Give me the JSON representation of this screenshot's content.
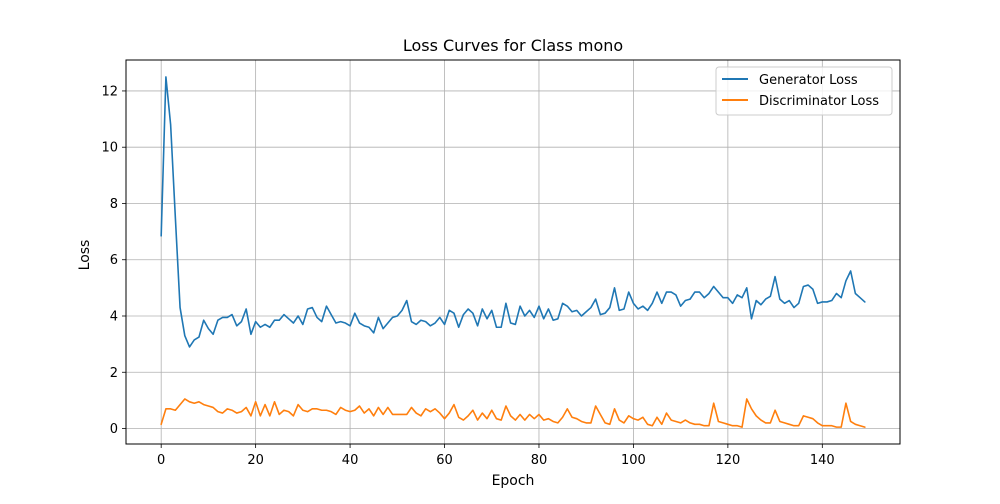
{
  "chart_data": {
    "type": "line",
    "title": "Loss Curves for Class mono",
    "xlabel": "Epoch",
    "ylabel": "Loss",
    "xlim": [
      -7.45,
      156.45
    ],
    "ylim": [
      -0.55,
      13.1
    ],
    "xticks": [
      0,
      20,
      40,
      60,
      80,
      100,
      120,
      140
    ],
    "yticks": [
      0,
      2,
      4,
      6,
      8,
      10,
      12
    ],
    "grid": true,
    "legend_position": "top-right",
    "x": [
      0,
      1,
      2,
      3,
      4,
      5,
      6,
      7,
      8,
      9,
      10,
      11,
      12,
      13,
      14,
      15,
      16,
      17,
      18,
      19,
      20,
      21,
      22,
      23,
      24,
      25,
      26,
      27,
      28,
      29,
      30,
      31,
      32,
      33,
      34,
      35,
      36,
      37,
      38,
      39,
      40,
      41,
      42,
      43,
      44,
      45,
      46,
      47,
      48,
      49,
      50,
      51,
      52,
      53,
      54,
      55,
      56,
      57,
      58,
      59,
      60,
      61,
      62,
      63,
      64,
      65,
      66,
      67,
      68,
      69,
      70,
      71,
      72,
      73,
      74,
      75,
      76,
      77,
      78,
      79,
      80,
      81,
      82,
      83,
      84,
      85,
      86,
      87,
      88,
      89,
      90,
      91,
      92,
      93,
      94,
      95,
      96,
      97,
      98,
      99,
      100,
      101,
      102,
      103,
      104,
      105,
      106,
      107,
      108,
      109,
      110,
      111,
      112,
      113,
      114,
      115,
      116,
      117,
      118,
      119,
      120,
      121,
      122,
      123,
      124,
      125,
      126,
      127,
      128,
      129,
      130,
      131,
      132,
      133,
      134,
      135,
      136,
      137,
      138,
      139,
      140,
      141,
      142,
      143,
      144,
      145,
      146,
      147,
      148,
      149
    ],
    "series": [
      {
        "name": "Generator Loss",
        "color": "#1f77b4",
        "values": [
          6.85,
          12.5,
          10.8,
          7.5,
          4.3,
          3.3,
          2.9,
          3.15,
          3.25,
          3.85,
          3.55,
          3.35,
          3.85,
          3.95,
          3.95,
          4.05,
          3.65,
          3.8,
          4.25,
          3.35,
          3.8,
          3.6,
          3.7,
          3.6,
          3.85,
          3.85,
          4.05,
          3.9,
          3.75,
          4.0,
          3.7,
          4.25,
          4.3,
          3.95,
          3.8,
          4.35,
          4.05,
          3.75,
          3.8,
          3.75,
          3.65,
          4.1,
          3.75,
          3.65,
          3.6,
          3.4,
          3.95,
          3.55,
          3.75,
          3.95,
          4.0,
          4.2,
          4.55,
          3.8,
          3.7,
          3.85,
          3.8,
          3.65,
          3.75,
          3.95,
          3.7,
          4.2,
          4.1,
          3.6,
          4.05,
          4.25,
          4.1,
          3.65,
          4.25,
          3.9,
          4.2,
          3.6,
          3.6,
          4.45,
          3.75,
          3.7,
          4.35,
          4.0,
          4.2,
          3.95,
          4.35,
          3.9,
          4.25,
          3.85,
          3.9,
          4.45,
          4.35,
          4.15,
          4.2,
          4.0,
          4.15,
          4.3,
          4.6,
          4.05,
          4.1,
          4.3,
          5.0,
          4.2,
          4.25,
          4.85,
          4.45,
          4.25,
          4.35,
          4.2,
          4.45,
          4.85,
          4.45,
          4.85,
          4.85,
          4.75,
          4.35,
          4.55,
          4.6,
          4.85,
          4.85,
          4.65,
          4.8,
          5.05,
          4.85,
          4.65,
          4.65,
          4.45,
          4.75,
          4.65,
          5.0,
          3.9,
          4.55,
          4.4,
          4.6,
          4.7,
          5.4,
          4.6,
          4.45,
          4.55,
          4.3,
          4.45,
          5.05,
          5.1,
          4.95,
          4.45,
          4.5,
          4.5,
          4.55,
          4.8,
          4.65,
          5.25,
          5.6,
          4.8,
          4.65,
          4.5
        ]
      },
      {
        "name": "Discriminator Loss",
        "color": "#ff7f0e",
        "values": [
          0.15,
          0.7,
          0.7,
          0.65,
          0.85,
          1.05,
          0.95,
          0.9,
          0.95,
          0.85,
          0.8,
          0.75,
          0.6,
          0.55,
          0.7,
          0.65,
          0.55,
          0.6,
          0.75,
          0.45,
          0.95,
          0.45,
          0.85,
          0.45,
          0.95,
          0.5,
          0.65,
          0.6,
          0.45,
          0.85,
          0.65,
          0.6,
          0.7,
          0.7,
          0.65,
          0.65,
          0.6,
          0.5,
          0.75,
          0.65,
          0.6,
          0.65,
          0.8,
          0.55,
          0.7,
          0.45,
          0.75,
          0.5,
          0.75,
          0.5,
          0.5,
          0.5,
          0.5,
          0.75,
          0.55,
          0.45,
          0.7,
          0.6,
          0.7,
          0.55,
          0.35,
          0.55,
          0.85,
          0.4,
          0.3,
          0.45,
          0.65,
          0.3,
          0.55,
          0.35,
          0.65,
          0.35,
          0.3,
          0.8,
          0.45,
          0.3,
          0.5,
          0.3,
          0.5,
          0.35,
          0.5,
          0.3,
          0.35,
          0.25,
          0.2,
          0.4,
          0.7,
          0.4,
          0.35,
          0.25,
          0.2,
          0.2,
          0.8,
          0.5,
          0.2,
          0.15,
          0.7,
          0.3,
          0.2,
          0.45,
          0.35,
          0.3,
          0.4,
          0.15,
          0.1,
          0.4,
          0.15,
          0.55,
          0.3,
          0.25,
          0.2,
          0.3,
          0.2,
          0.15,
          0.15,
          0.1,
          0.1,
          0.9,
          0.25,
          0.2,
          0.15,
          0.1,
          0.1,
          0.05,
          1.05,
          0.7,
          0.45,
          0.3,
          0.2,
          0.2,
          0.65,
          0.25,
          0.2,
          0.15,
          0.1,
          0.1,
          0.45,
          0.4,
          0.35,
          0.2,
          0.1,
          0.1,
          0.1,
          0.05,
          0.05,
          0.9,
          0.25,
          0.15,
          0.1,
          0.05
        ]
      }
    ]
  }
}
